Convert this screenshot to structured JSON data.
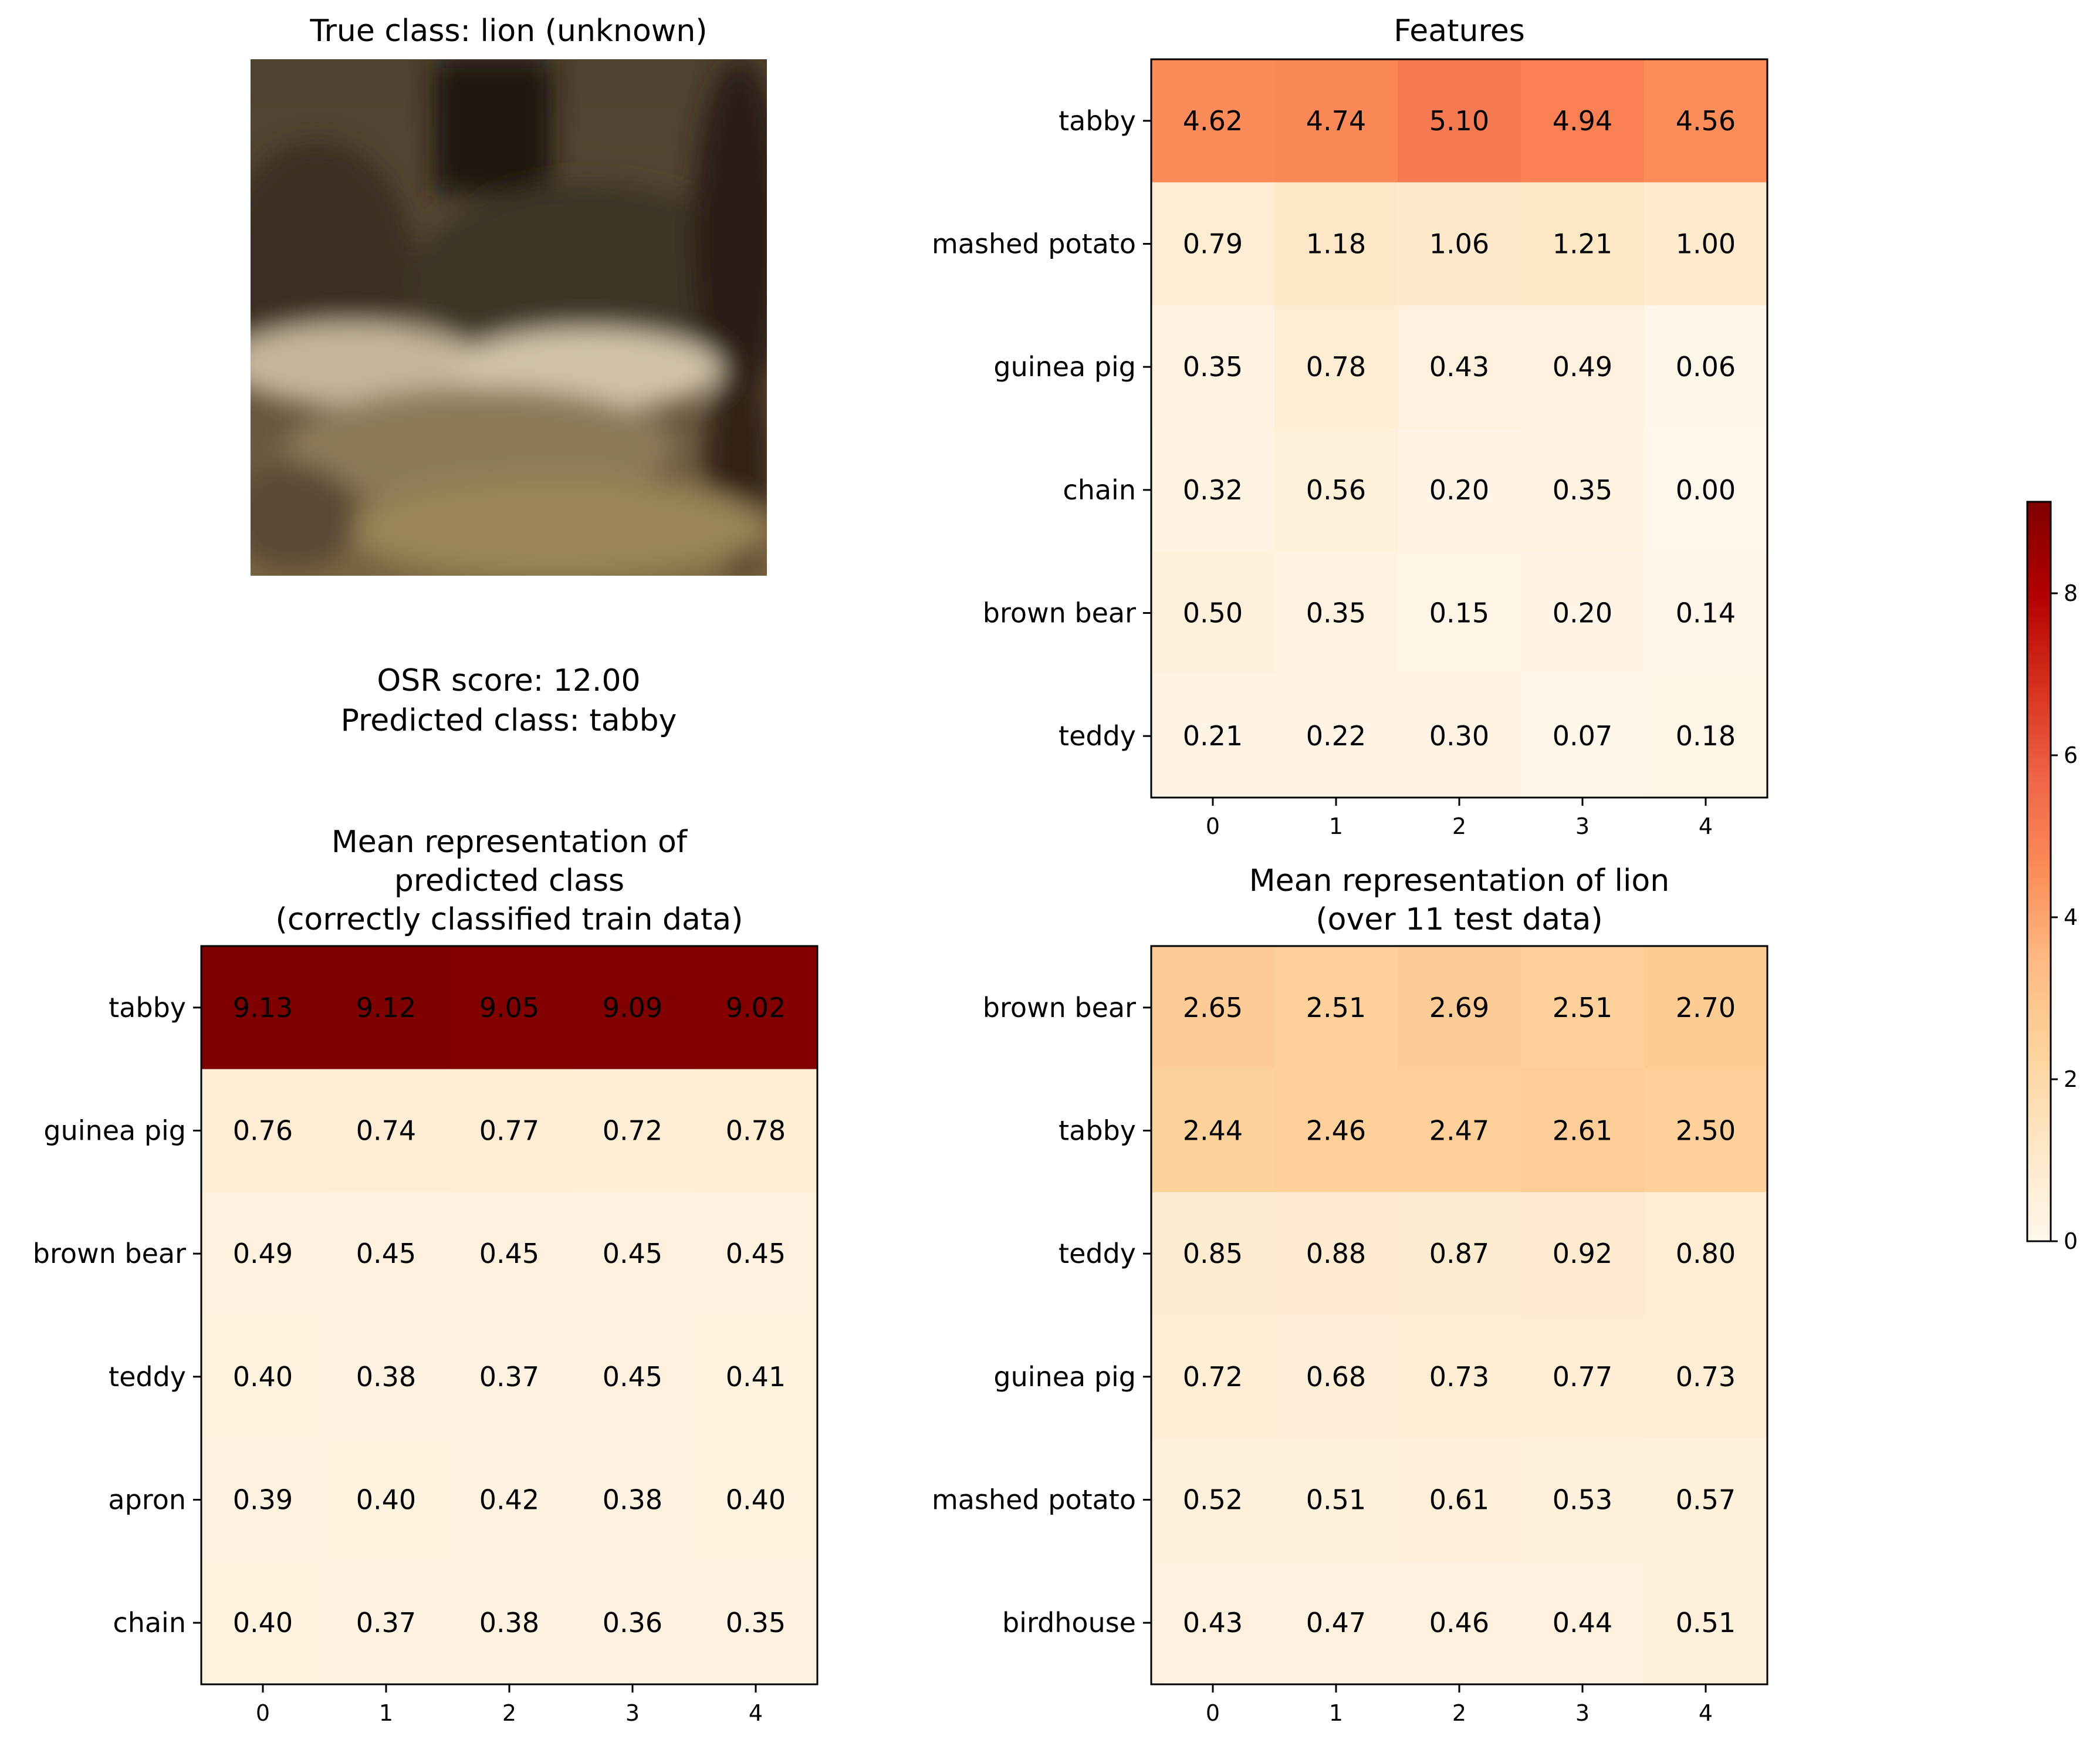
{
  "figure": {
    "image_title": "True class: lion (unknown)",
    "score_line": "OSR score: 12.00",
    "predicted_line": "Predicted class: tabby"
  },
  "colormap": {
    "name": "OrRd",
    "stops": [
      "#fff7ec",
      "#fee8c8",
      "#fdd49e",
      "#fdbb84",
      "#fc8d59",
      "#ef6548",
      "#d7301f",
      "#b30000",
      "#7f0000"
    ],
    "colorbar": {
      "vmin": 0,
      "vmax": 9.13,
      "ticks": [
        0,
        2,
        4,
        6,
        8
      ]
    }
  },
  "chart_data": [
    {
      "type": "heatmap",
      "title_lines": [
        "Features"
      ],
      "row_labels": [
        "tabby",
        "mashed potato",
        "guinea pig",
        "chain",
        "brown bear",
        "teddy"
      ],
      "col_labels": [
        "0",
        "1",
        "2",
        "3",
        "4"
      ],
      "values": [
        [
          4.62,
          4.74,
          5.1,
          4.94,
          4.56
        ],
        [
          0.79,
          1.18,
          1.06,
          1.21,
          1.0
        ],
        [
          0.35,
          0.78,
          0.43,
          0.49,
          0.06
        ],
        [
          0.32,
          0.56,
          0.2,
          0.35,
          0.0
        ],
        [
          0.5,
          0.35,
          0.15,
          0.2,
          0.14
        ],
        [
          0.21,
          0.22,
          0.3,
          0.07,
          0.18
        ]
      ]
    },
    {
      "type": "heatmap",
      "title_lines": [
        "Mean representation of",
        "predicted class",
        "(correctly classified train data)"
      ],
      "row_labels": [
        "tabby",
        "guinea pig",
        "brown bear",
        "teddy",
        "apron",
        "chain"
      ],
      "col_labels": [
        "0",
        "1",
        "2",
        "3",
        "4"
      ],
      "values": [
        [
          9.13,
          9.12,
          9.05,
          9.09,
          9.02
        ],
        [
          0.76,
          0.74,
          0.77,
          0.72,
          0.78
        ],
        [
          0.49,
          0.45,
          0.45,
          0.45,
          0.45
        ],
        [
          0.4,
          0.38,
          0.37,
          0.45,
          0.41
        ],
        [
          0.39,
          0.4,
          0.42,
          0.38,
          0.4
        ],
        [
          0.4,
          0.37,
          0.38,
          0.36,
          0.35
        ]
      ]
    },
    {
      "type": "heatmap",
      "title_lines": [
        "Mean representation of lion",
        "(over 11 test data)"
      ],
      "row_labels": [
        "brown bear",
        "tabby",
        "teddy",
        "guinea pig",
        "mashed potato",
        "birdhouse"
      ],
      "col_labels": [
        "0",
        "1",
        "2",
        "3",
        "4"
      ],
      "values": [
        [
          2.65,
          2.51,
          2.69,
          2.51,
          2.7
        ],
        [
          2.44,
          2.46,
          2.47,
          2.61,
          2.5
        ],
        [
          0.85,
          0.88,
          0.87,
          0.92,
          0.8
        ],
        [
          0.72,
          0.68,
          0.73,
          0.77,
          0.73
        ],
        [
          0.52,
          0.51,
          0.61,
          0.53,
          0.57
        ],
        [
          0.43,
          0.47,
          0.46,
          0.44,
          0.51
        ]
      ]
    }
  ]
}
